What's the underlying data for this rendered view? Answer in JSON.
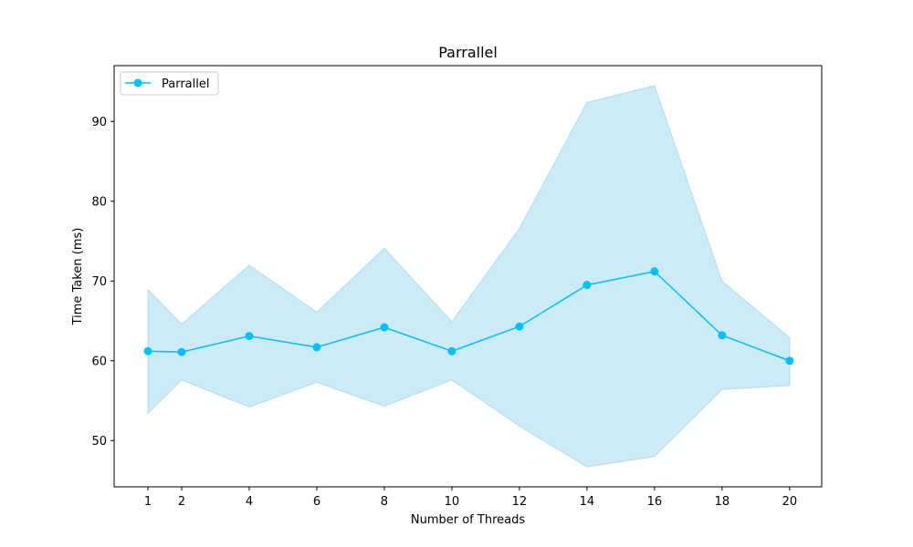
{
  "chart_data": {
    "type": "line",
    "title": "Parrallel",
    "xlabel": "Number of Threads",
    "ylabel": "Time Taken (ms)",
    "x": [
      1,
      2,
      4,
      6,
      8,
      10,
      12,
      14,
      16,
      18,
      20
    ],
    "xlim": [
      0.0,
      20.95
    ],
    "ylim": [
      44.2,
      97.0
    ],
    "xticks": [
      1,
      2,
      4,
      6,
      8,
      10,
      12,
      14,
      16,
      18,
      20
    ],
    "yticks": [
      50,
      60,
      70,
      80,
      90
    ],
    "grid": false,
    "legend_position": "upper-left",
    "series": [
      {
        "name": "Parrallel",
        "color": "#00bfff",
        "marker": "circle",
        "values": [
          61.2,
          61.1,
          63.1,
          61.7,
          64.2,
          61.2,
          64.3,
          69.5,
          71.2,
          63.2,
          60.0
        ],
        "band_lower": [
          53.4,
          57.6,
          54.2,
          57.3,
          54.3,
          57.6,
          51.8,
          46.7,
          48.0,
          56.4,
          56.9
        ],
        "band_upper": [
          68.9,
          64.6,
          72.0,
          66.1,
          74.1,
          64.9,
          76.6,
          92.4,
          94.5,
          70.0,
          62.9
        ]
      }
    ],
    "band_color": "#87ceeb"
  }
}
